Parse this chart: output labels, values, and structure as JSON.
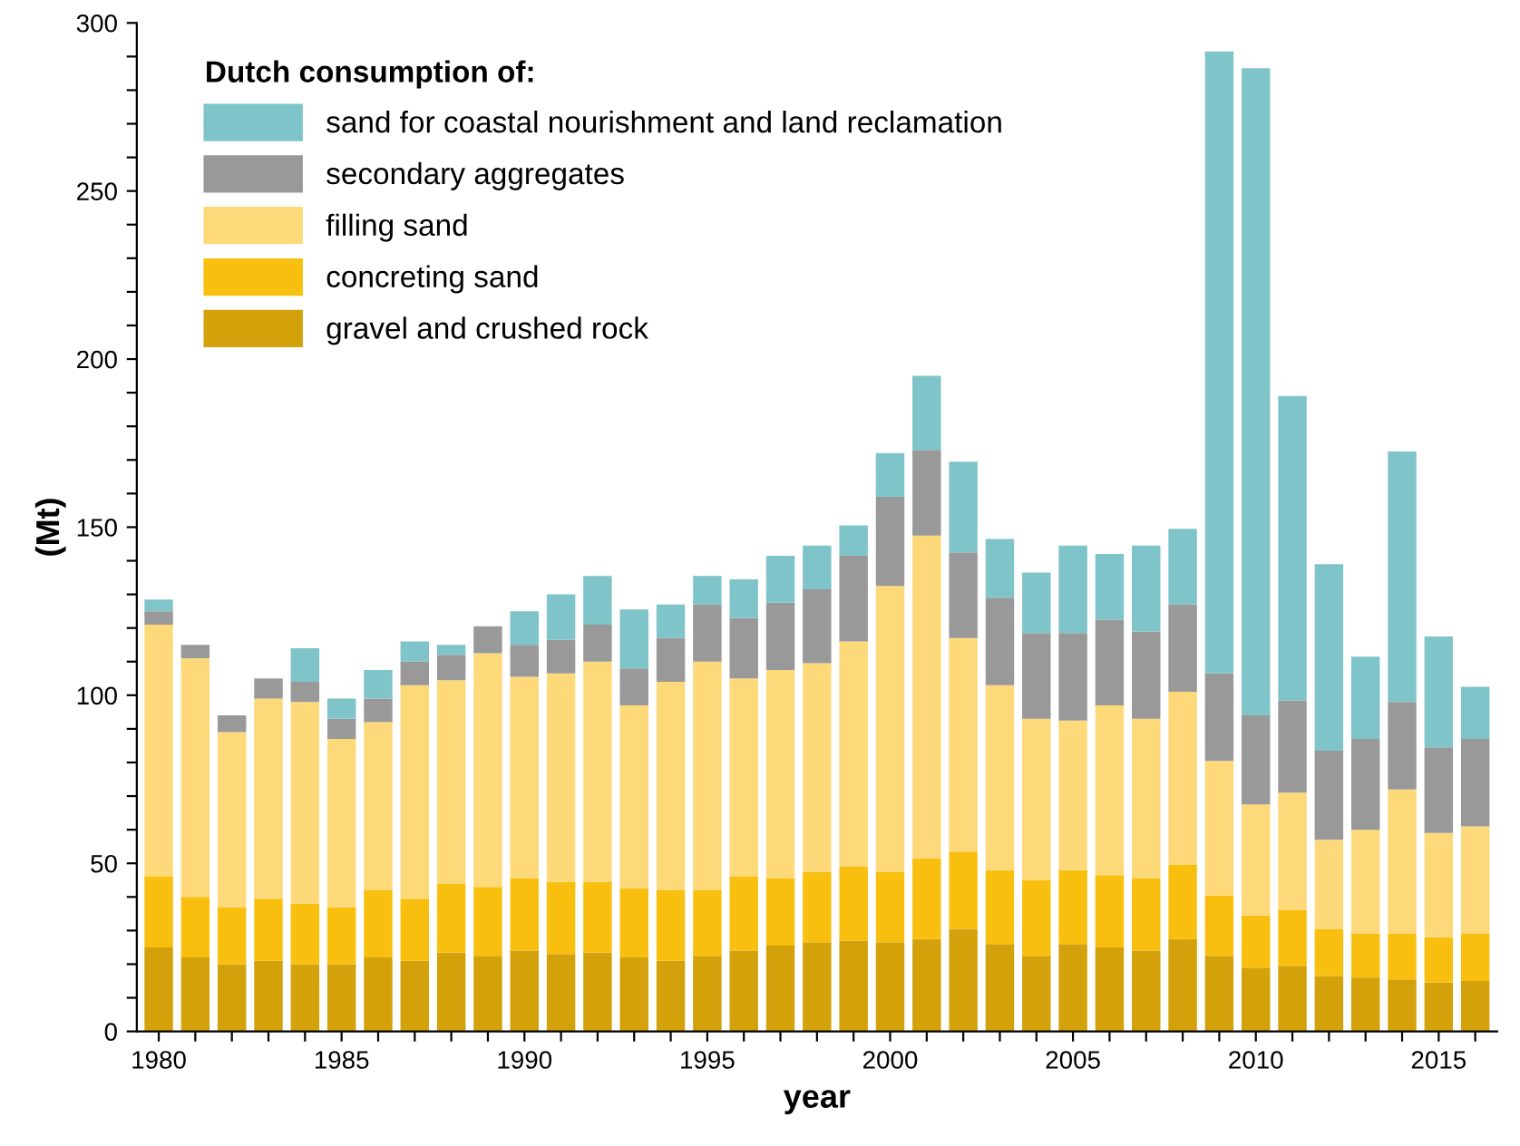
{
  "chart_data": {
    "type": "bar",
    "stacked": true,
    "xlabel": "year",
    "ylabel": "(Mt)",
    "legend_title": "Dutch consumption of:",
    "legend": "top left",
    "grid": false,
    "categories": [
      "1980",
      null,
      null,
      null,
      null,
      "1985",
      null,
      null,
      null,
      null,
      "1990",
      null,
      null,
      null,
      null,
      "1995",
      null,
      null,
      null,
      null,
      "2000",
      null,
      null,
      null,
      null,
      "2005",
      null,
      null,
      null,
      null,
      "2010",
      null,
      null,
      null,
      null,
      "2015",
      null
    ],
    "ylim": [
      0,
      300
    ],
    "yticks": [
      0,
      {
        "value": 10,
        "label": null
      },
      {
        "value": 20,
        "label": null
      },
      {
        "value": 30,
        "label": null
      },
      {
        "value": 40,
        "label": null
      },
      50,
      {
        "value": 60,
        "label": null
      },
      {
        "value": 70,
        "label": null
      },
      {
        "value": 80,
        "label": null
      },
      {
        "value": 90,
        "label": null
      },
      100,
      {
        "value": 110,
        "label": null
      },
      {
        "value": 120,
        "label": null
      },
      {
        "value": 130,
        "label": null
      },
      {
        "value": 140,
        "label": null
      },
      150,
      {
        "value": 160,
        "label": null
      },
      {
        "value": 170,
        "label": null
      },
      {
        "value": 180,
        "label": null
      },
      {
        "value": 190,
        "label": null
      },
      200,
      {
        "value": 210,
        "label": null
      },
      {
        "value": 220,
        "label": null
      },
      {
        "value": 230,
        "label": null
      },
      {
        "value": 240,
        "label": null
      },
      250,
      {
        "value": 260,
        "label": null
      },
      {
        "value": 270,
        "label": null
      },
      {
        "value": 280,
        "label": null
      },
      {
        "value": 290,
        "label": null
      },
      300
    ],
    "series": [
      {
        "name": "gravel and crushed rock",
        "color": "#d3a10a",
        "values": [
          25,
          22,
          20,
          21,
          20,
          20,
          22,
          21,
          23.5,
          22.5,
          24,
          23,
          23.5,
          22,
          21,
          22.5,
          24,
          25.5,
          26.5,
          27,
          26.5,
          27.5,
          30.5,
          26,
          22.5,
          26,
          25,
          24,
          27.5,
          22.5,
          19,
          19.5,
          16.5,
          16,
          15.5,
          14.5,
          15
        ]
      },
      {
        "name": "concreting sand",
        "color": "#f8bf0f",
        "values": [
          21,
          18,
          17,
          18.5,
          18,
          17,
          20,
          18.5,
          20.5,
          20.5,
          21.5,
          21.5,
          21,
          20.5,
          21,
          19.5,
          22,
          20,
          21,
          22,
          21,
          24,
          23,
          22,
          22.5,
          22,
          21.5,
          21.5,
          22,
          18,
          15.5,
          16.5,
          14,
          13,
          13.5,
          13.5,
          14
        ]
      },
      {
        "name": "filling sand",
        "color": "#fdd97a",
        "values": [
          75,
          71,
          52,
          59.5,
          60,
          50,
          50,
          63.5,
          60.5,
          69.5,
          60,
          62,
          65.5,
          54.5,
          62,
          68,
          59,
          62,
          62,
          67,
          85,
          96,
          63.5,
          55,
          48,
          44.5,
          50.5,
          47.5,
          51.5,
          40,
          33,
          35,
          26.5,
          31,
          43,
          31,
          32
        ]
      },
      {
        "name": "secondary aggregates",
        "color": "#999999",
        "values": [
          4,
          4,
          5,
          6,
          6,
          6,
          7,
          7,
          7.5,
          8,
          9.5,
          10,
          11,
          11,
          13,
          17,
          18,
          20,
          22,
          25.5,
          26.5,
          25.5,
          25.5,
          26,
          25.5,
          26,
          25.5,
          26,
          26,
          26,
          26.5,
          27.5,
          26.5,
          27,
          26,
          25.5,
          26
        ]
      },
      {
        "name": "sand for coastal nourishment and land reclamation",
        "color": "#7fc4c8",
        "values": [
          3.5,
          0,
          0,
          0,
          10,
          6,
          8.5,
          6,
          3,
          0,
          10,
          13.5,
          14.5,
          17.5,
          10,
          8.5,
          11.5,
          14,
          13,
          9,
          13,
          22,
          27,
          17.5,
          18,
          26,
          19.5,
          25.5,
          22.5,
          185,
          192.5,
          90.5,
          55.5,
          24.5,
          74.5,
          33,
          15.5
        ]
      }
    ]
  }
}
